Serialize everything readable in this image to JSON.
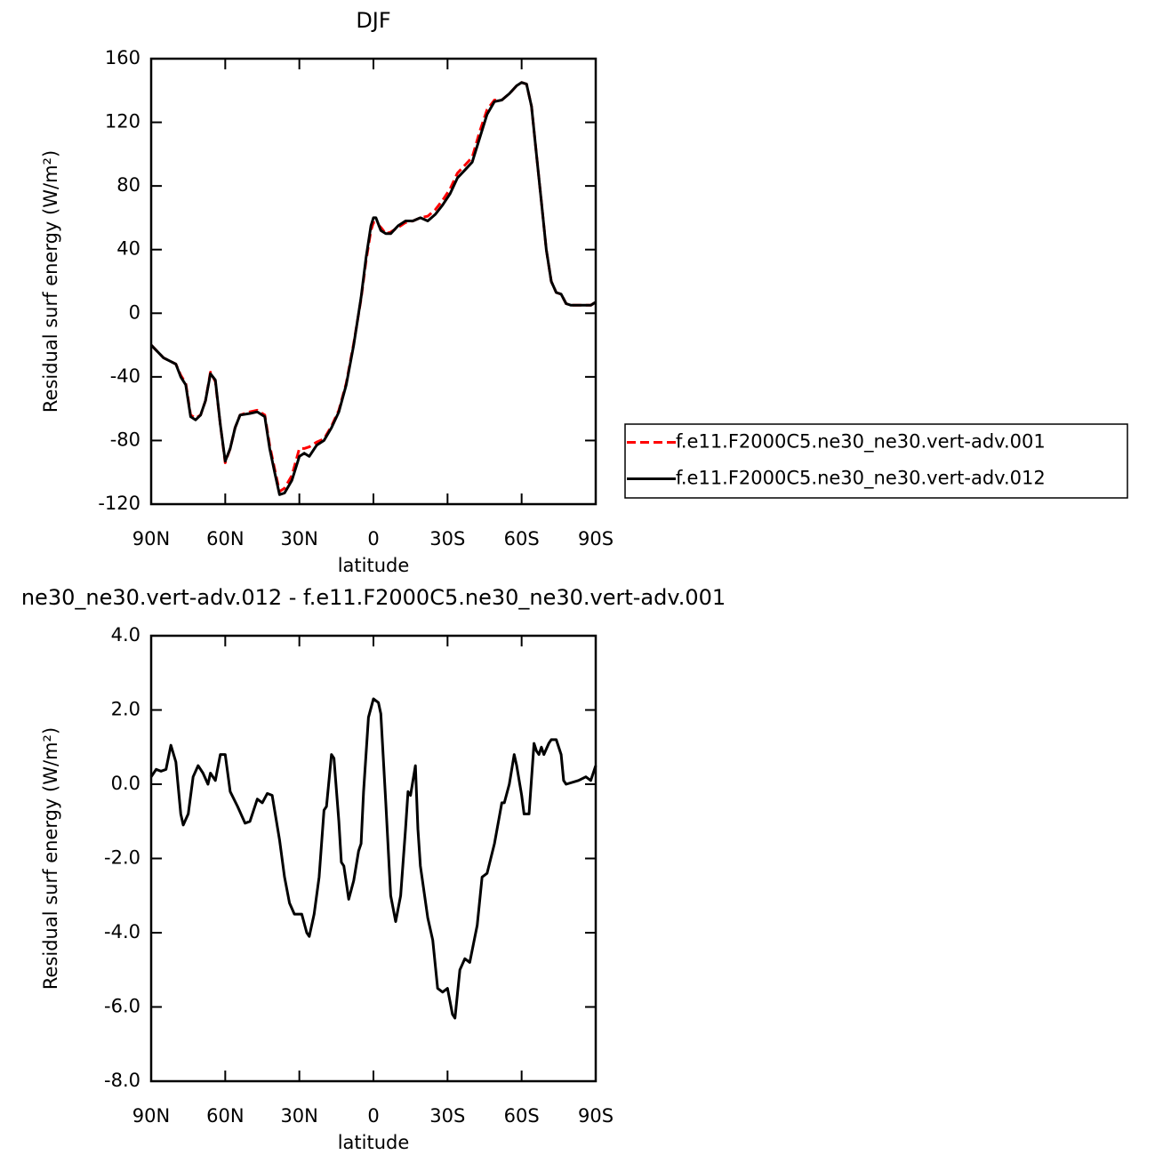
{
  "chart_data": [
    {
      "type": "line",
      "title": "DJF",
      "x_label": "latitude",
      "y_label": "Residual surf energy (W/m²)",
      "x": [
        90,
        85,
        80,
        78,
        76,
        74,
        72,
        70,
        68,
        66,
        64,
        62,
        60,
        58,
        56,
        54,
        50,
        47,
        44,
        42,
        40,
        38,
        36,
        33,
        30,
        28,
        26,
        23,
        20,
        17,
        14,
        11,
        8,
        5,
        3,
        1,
        0,
        -1,
        -3,
        -5,
        -7,
        -10,
        -13,
        -16,
        -19,
        -22,
        -25,
        -28,
        -31,
        -34,
        -37,
        -40,
        -43,
        -46,
        -49,
        -52,
        -55,
        -58,
        -60,
        -62,
        -64,
        -66,
        -68,
        -70,
        -72,
        -74,
        -76,
        -78,
        -80,
        -84,
        -88,
        -90
      ],
      "series": [
        {
          "name": "f.e11.F2000C5.ne30_ne30.vert-adv.001",
          "color": "#ff0000",
          "style": "dashed",
          "values": [
            -20,
            -28,
            -32,
            -39,
            -44,
            -64,
            -66,
            -64,
            -55,
            -37,
            -43,
            -70,
            -94,
            -85,
            -72,
            -64,
            -62,
            -61,
            -64,
            -83,
            -98,
            -112,
            -110,
            -102,
            -85,
            -85,
            -84,
            -81,
            -79,
            -71,
            -61,
            -44,
            -19,
            9,
            33,
            52,
            57,
            57,
            54,
            50,
            51,
            54,
            57,
            58,
            60,
            61,
            65,
            71,
            78,
            88,
            93,
            98,
            114,
            128,
            134,
            134,
            138,
            143,
            145,
            144,
            130,
            100,
            70,
            40,
            20,
            13,
            12,
            6,
            5,
            5,
            5,
            7
          ]
        },
        {
          "name": "f.e11.F2000C5.ne30_ne30.vert-adv.012",
          "color": "#000000",
          "style": "solid",
          "values": [
            -20,
            -28,
            -32,
            -40,
            -45,
            -65,
            -67,
            -64,
            -55,
            -38,
            -42,
            -70,
            -93,
            -85,
            -72,
            -64,
            -63,
            -62,
            -65,
            -85,
            -100,
            -114,
            -113,
            -105,
            -90,
            -88,
            -90,
            -83,
            -80,
            -72,
            -62,
            -45,
            -20,
            10,
            35,
            55,
            60,
            60,
            52,
            50,
            50,
            55,
            58,
            58,
            60,
            58,
            62,
            68,
            75,
            85,
            90,
            95,
            110,
            125,
            133,
            134,
            138,
            143,
            145,
            144,
            130,
            100,
            70,
            40,
            20,
            13,
            12,
            6,
            5,
            5,
            5,
            7
          ]
        }
      ],
      "xlim": [
        90,
        -90
      ],
      "ylim": [
        -120,
        160
      ],
      "xticks": [
        {
          "value": 90,
          "label": "90N"
        },
        {
          "value": 60,
          "label": "60N"
        },
        {
          "value": 30,
          "label": "30N"
        },
        0,
        {
          "value": -30,
          "label": "30S"
        },
        {
          "value": -60,
          "label": "60S"
        },
        {
          "value": -90,
          "label": "90S"
        }
      ],
      "yticks": [
        -120,
        -80,
        -40,
        0,
        40,
        80,
        120,
        160
      ],
      "legend": "right"
    },
    {
      "type": "line",
      "title": "ne30_ne30.vert-adv.012 - f.e11.F2000C5.ne30_ne30.vert-adv.001",
      "x_label": "latitude",
      "y_label": "Residual surf energy (W/m²)",
      "x": [
        90,
        88,
        86,
        84,
        82,
        80,
        78,
        77,
        75,
        73,
        71,
        69,
        67,
        66,
        64,
        62,
        60,
        58,
        55,
        52,
        50,
        47,
        45,
        43,
        41,
        38,
        36,
        34,
        32,
        29,
        27,
        26,
        24,
        22,
        20,
        19,
        17,
        16,
        14,
        13,
        12,
        10,
        8,
        6,
        5,
        4,
        2,
        0,
        -2,
        -3,
        -5,
        -7,
        -9,
        -11,
        -13,
        -14,
        -15,
        -17,
        -18,
        -19,
        -22,
        -24,
        -26,
        -28,
        -30,
        -32,
        -33,
        -35,
        -37,
        -39,
        -42,
        -44,
        -46,
        -49,
        -52,
        -53,
        -55,
        -57,
        -58,
        -60,
        -61,
        -63,
        -65,
        -66,
        -67,
        -68,
        -69,
        -71,
        -72,
        -74,
        -76,
        -77,
        -78,
        -83,
        -86,
        -88,
        -90
      ],
      "series": [
        {
          "color": "#000000",
          "style": "solid",
          "values": [
            0.2,
            0.4,
            0.35,
            0.4,
            1.05,
            0.6,
            -0.8,
            -1.1,
            -0.8,
            0.2,
            0.5,
            0.3,
            0.0,
            0.3,
            0.1,
            0.8,
            0.8,
            -0.2,
            -0.6,
            -1.05,
            -1.0,
            -0.4,
            -0.5,
            -0.25,
            -0.3,
            -1.5,
            -2.5,
            -3.2,
            -3.5,
            -3.5,
            -4.0,
            -4.1,
            -3.5,
            -2.5,
            -0.7,
            -0.6,
            0.8,
            0.7,
            -1.0,
            -2.1,
            -2.2,
            -3.1,
            -2.6,
            -1.8,
            -1.6,
            -0.2,
            1.8,
            2.3,
            2.2,
            1.9,
            -0.5,
            -3.0,
            -3.7,
            -3.0,
            -1.2,
            -0.2,
            -0.3,
            0.5,
            -1.2,
            -2.2,
            -3.6,
            -4.2,
            -5.5,
            -5.6,
            -5.5,
            -6.2,
            -6.3,
            -5.0,
            -4.7,
            -4.8,
            -3.8,
            -2.5,
            -2.4,
            -1.6,
            -0.5,
            -0.5,
            0.0,
            0.8,
            0.5,
            -0.3,
            -0.8,
            -0.8,
            1.1,
            0.9,
            0.8,
            1.0,
            0.8,
            1.1,
            1.2,
            1.2,
            0.8,
            0.1,
            0.0,
            0.1,
            0.2,
            0.1,
            0.5
          ]
        }
      ],
      "xlim": [
        90,
        -90
      ],
      "ylim": [
        -8,
        4
      ],
      "xticks": [
        {
          "value": 90,
          "label": "90N"
        },
        {
          "value": 60,
          "label": "60N"
        },
        {
          "value": 30,
          "label": "30N"
        },
        0,
        {
          "value": -30,
          "label": "30S"
        },
        {
          "value": -60,
          "label": "60S"
        },
        {
          "value": -90,
          "label": "90S"
        }
      ],
      "yticks": [
        {
          "value": -8,
          "label": "-8.0"
        },
        {
          "value": -6,
          "label": "-6.0"
        },
        {
          "value": -4,
          "label": "-4.0"
        },
        {
          "value": -2,
          "label": "-2.0"
        },
        {
          "value": 0,
          "label": "0.0"
        },
        {
          "value": 2,
          "label": "2.0"
        },
        {
          "value": 4,
          "label": "4.0"
        }
      ]
    }
  ]
}
